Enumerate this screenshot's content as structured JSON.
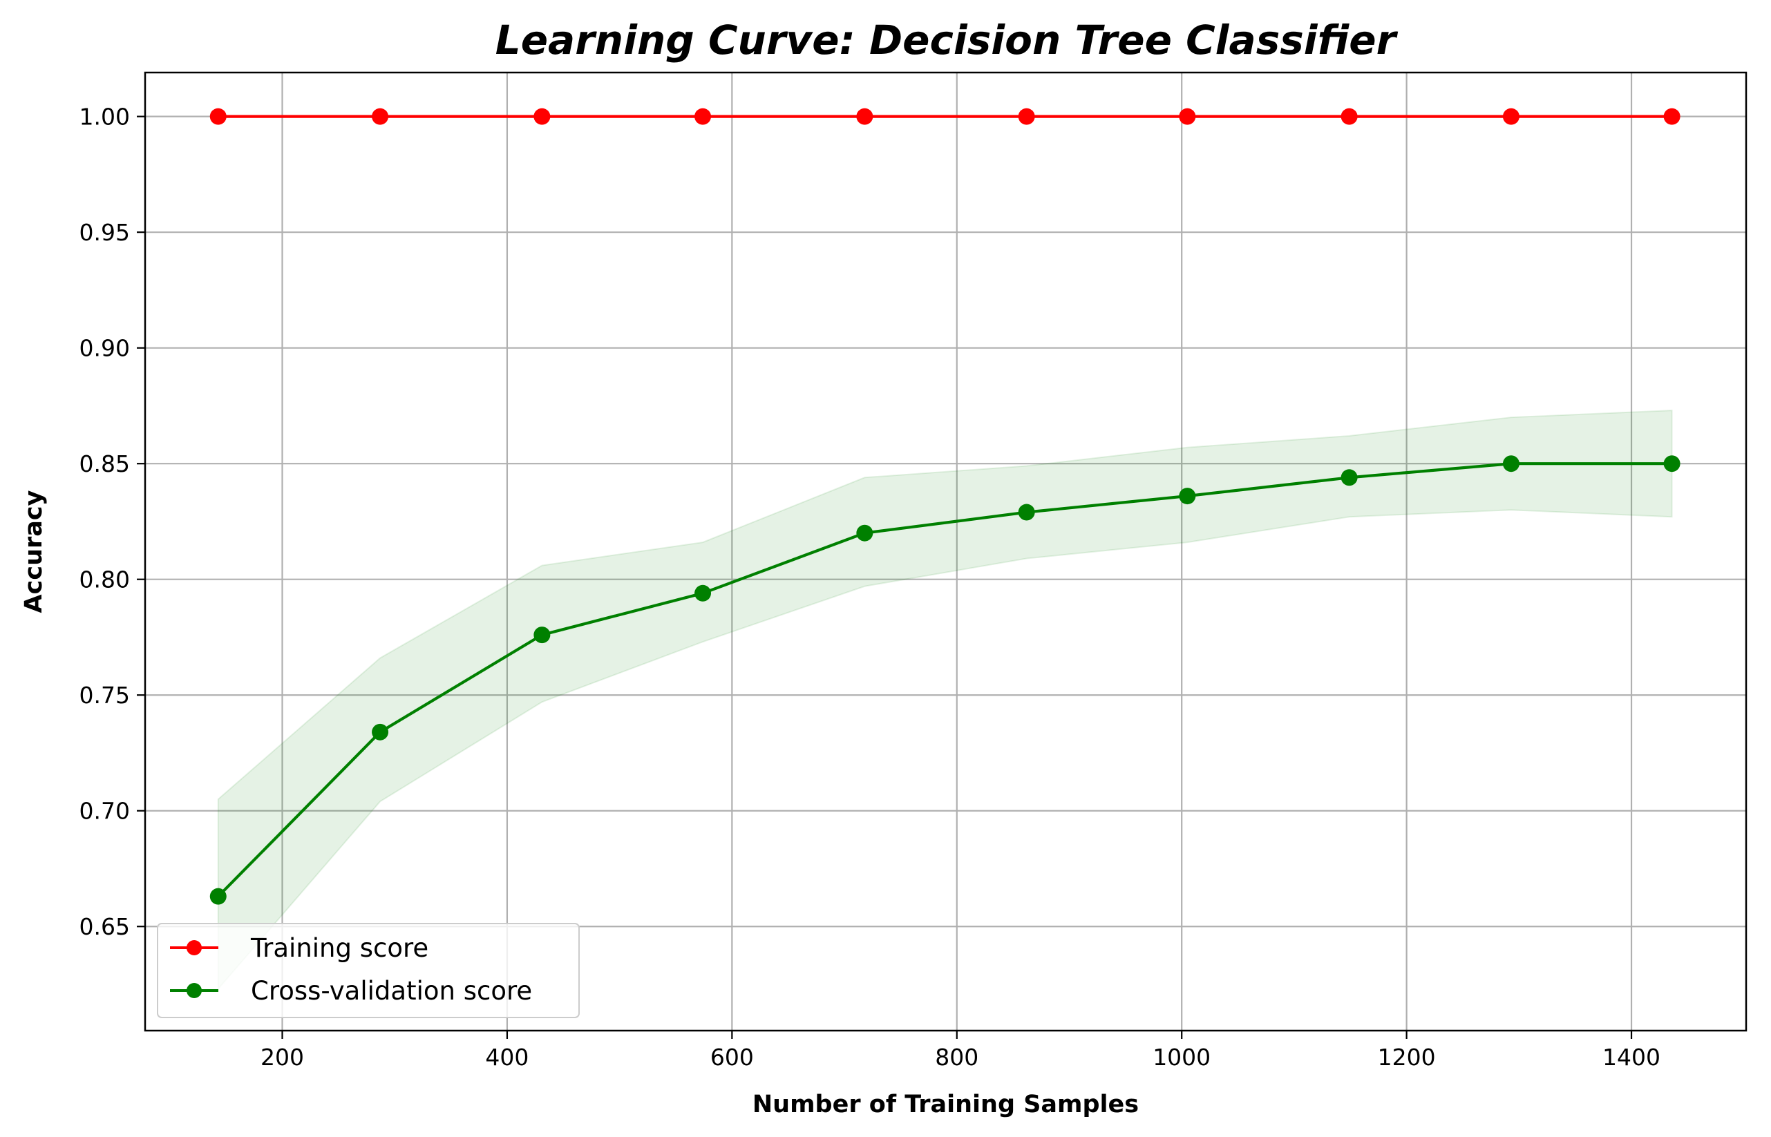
{
  "chart_data": {
    "type": "line",
    "title": "Learning Curve: Decision Tree Classifier",
    "xlabel": "Number of Training Samples",
    "ylabel": "Accuracy",
    "xlim": [
      78,
      1502
    ],
    "ylim": [
      0.605,
      1.019
    ],
    "xticks": [
      200,
      400,
      600,
      800,
      1000,
      1200,
      1400
    ],
    "yticks": [
      0.65,
      0.7,
      0.75,
      0.8,
      0.85,
      0.9,
      0.95,
      1.0
    ],
    "grid": true,
    "legend_position": "lower left",
    "x": [
      143,
      287,
      431,
      574,
      718,
      862,
      1005,
      1149,
      1293,
      1436
    ],
    "series": [
      {
        "name": "Training score",
        "color": "#ff0000",
        "values": [
          1.0,
          1.0,
          1.0,
          1.0,
          1.0,
          1.0,
          1.0,
          1.0,
          1.0,
          1.0
        ],
        "band_lower": [
          1.0,
          1.0,
          1.0,
          1.0,
          1.0,
          1.0,
          1.0,
          1.0,
          1.0,
          1.0
        ],
        "band_upper": [
          1.0,
          1.0,
          1.0,
          1.0,
          1.0,
          1.0,
          1.0,
          1.0,
          1.0,
          1.0
        ]
      },
      {
        "name": "Cross-validation score",
        "color": "#008000",
        "values": [
          0.663,
          0.734,
          0.776,
          0.794,
          0.82,
          0.829,
          0.836,
          0.844,
          0.85,
          0.85
        ],
        "band_lower": [
          0.623,
          0.704,
          0.747,
          0.773,
          0.797,
          0.809,
          0.816,
          0.827,
          0.83,
          0.827
        ],
        "band_upper": [
          0.705,
          0.766,
          0.806,
          0.816,
          0.844,
          0.849,
          0.857,
          0.862,
          0.87,
          0.873
        ]
      }
    ]
  }
}
